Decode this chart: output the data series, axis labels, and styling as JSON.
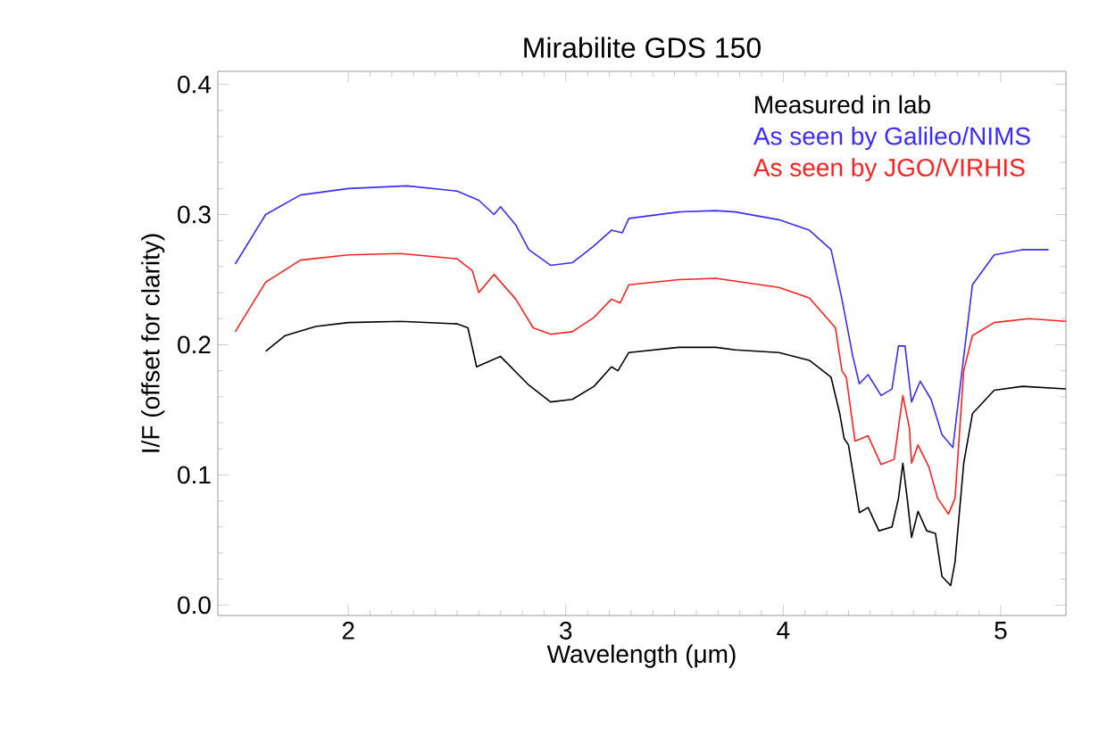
{
  "chart_data": {
    "type": "line",
    "title": "Mirabilite GDS 150",
    "xlabel": "Wavelength (μm)",
    "ylabel": "I/F (offset for clarity)",
    "xlim": [
      1.4,
      5.3
    ],
    "ylim": [
      -0.008,
      0.41
    ],
    "xticks": [
      2,
      3,
      4,
      5
    ],
    "yticks": [
      {
        "value": 0.0,
        "label": "0.0"
      },
      {
        "value": 0.1,
        "label": "0.1"
      },
      {
        "value": 0.2,
        "label": "0.2"
      },
      {
        "value": 0.3,
        "label": "0.3"
      },
      {
        "value": 0.4,
        "label": "0.4"
      }
    ],
    "legend": "top right",
    "grid": false,
    "marker": "none",
    "line_style": "solid",
    "series": [
      {
        "name": "Measured in lab",
        "color": "#000000",
        "x": [
          1.62,
          1.71,
          1.85,
          2.0,
          2.24,
          2.5,
          2.55,
          2.59,
          2.7,
          2.83,
          2.93,
          3.03,
          3.13,
          3.21,
          3.24,
          3.29,
          3.52,
          3.69,
          3.78,
          3.98,
          4.12,
          4.22,
          4.26,
          4.28,
          4.3,
          4.35,
          4.39,
          4.44,
          4.5,
          4.53,
          4.55,
          4.57,
          4.59,
          4.62,
          4.66,
          4.7,
          4.73,
          4.77,
          4.79,
          4.83,
          4.87,
          4.97,
          5.1,
          5.3
        ],
        "values": [
          0.195,
          0.207,
          0.214,
          0.217,
          0.218,
          0.216,
          0.213,
          0.183,
          0.191,
          0.169,
          0.156,
          0.158,
          0.168,
          0.183,
          0.18,
          0.194,
          0.198,
          0.198,
          0.196,
          0.194,
          0.188,
          0.175,
          0.147,
          0.128,
          0.123,
          0.071,
          0.075,
          0.057,
          0.06,
          0.082,
          0.109,
          0.082,
          0.052,
          0.072,
          0.057,
          0.055,
          0.022,
          0.015,
          0.033,
          0.109,
          0.147,
          0.165,
          0.168,
          0.166
        ]
      },
      {
        "name": "As seen by Galileo/NIMS",
        "color": "#3b2bff",
        "x": [
          1.48,
          1.62,
          1.78,
          2.0,
          2.27,
          2.5,
          2.6,
          2.67,
          2.7,
          2.77,
          2.83,
          2.93,
          3.03,
          3.13,
          3.21,
          3.26,
          3.29,
          3.52,
          3.69,
          3.78,
          3.98,
          4.12,
          4.22,
          4.27,
          4.32,
          4.35,
          4.39,
          4.45,
          4.5,
          4.53,
          4.56,
          4.59,
          4.63,
          4.68,
          4.73,
          4.78,
          4.83,
          4.87,
          4.97,
          5.1,
          5.22
        ],
        "values": [
          0.262,
          0.3,
          0.315,
          0.32,
          0.322,
          0.318,
          0.311,
          0.3,
          0.306,
          0.292,
          0.273,
          0.261,
          0.263,
          0.276,
          0.288,
          0.286,
          0.297,
          0.302,
          0.303,
          0.302,
          0.296,
          0.288,
          0.273,
          0.235,
          0.191,
          0.17,
          0.177,
          0.161,
          0.166,
          0.199,
          0.199,
          0.156,
          0.172,
          0.158,
          0.131,
          0.121,
          0.191,
          0.246,
          0.269,
          0.273,
          0.273
        ]
      },
      {
        "name": "As seen by JGO/VIRHIS",
        "color": "#ff2020",
        "x": [
          1.48,
          1.62,
          1.78,
          2.0,
          2.24,
          2.5,
          2.57,
          2.6,
          2.67,
          2.77,
          2.85,
          2.93,
          3.03,
          3.13,
          3.21,
          3.25,
          3.29,
          3.52,
          3.69,
          3.98,
          4.12,
          4.24,
          4.27,
          4.29,
          4.33,
          4.39,
          4.45,
          4.51,
          4.55,
          4.58,
          4.59,
          4.62,
          4.67,
          4.71,
          4.76,
          4.79,
          4.83,
          4.87,
          4.97,
          5.13,
          5.3
        ],
        "values": [
          0.21,
          0.248,
          0.265,
          0.269,
          0.27,
          0.266,
          0.257,
          0.24,
          0.254,
          0.235,
          0.213,
          0.208,
          0.21,
          0.221,
          0.235,
          0.232,
          0.246,
          0.25,
          0.251,
          0.244,
          0.236,
          0.213,
          0.18,
          0.175,
          0.126,
          0.13,
          0.108,
          0.112,
          0.161,
          0.136,
          0.109,
          0.123,
          0.106,
          0.082,
          0.07,
          0.082,
          0.18,
          0.207,
          0.217,
          0.22,
          0.218
        ]
      }
    ]
  }
}
